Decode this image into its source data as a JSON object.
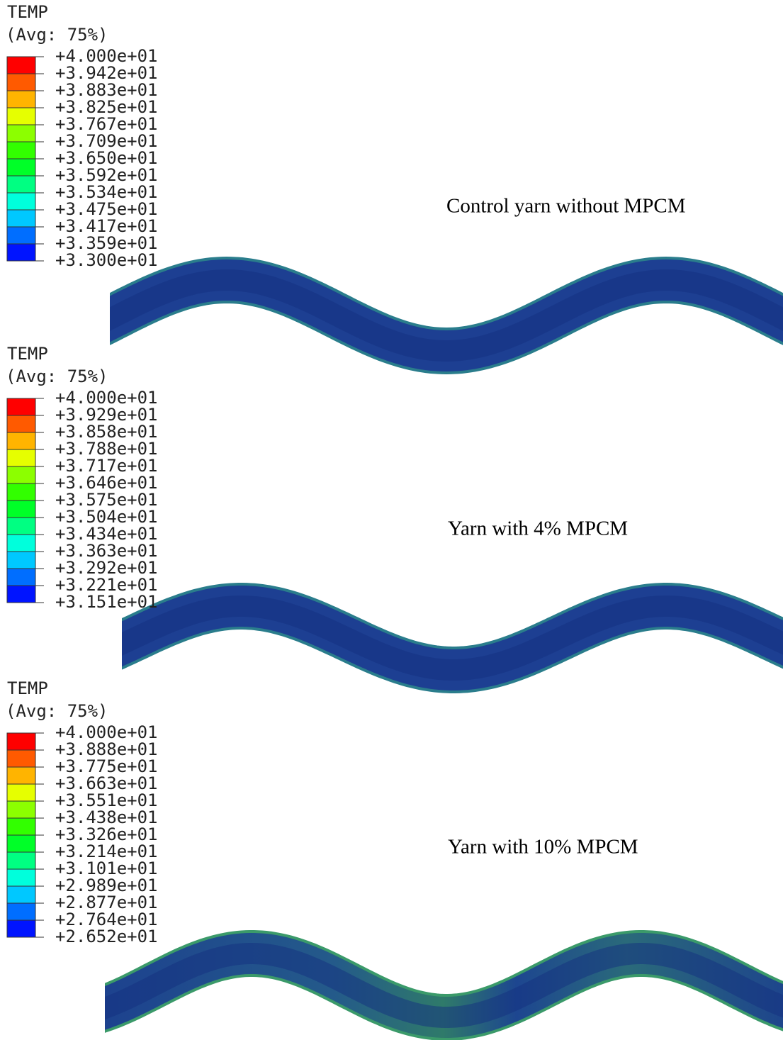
{
  "panels": [
    {
      "legend_title": "TEMP",
      "legend_subtitle": "(Avg: 75%)",
      "legend_labels": [
        "+4.000e+01",
        "+3.942e+01",
        "+3.883e+01",
        "+3.825e+01",
        "+3.767e+01",
        "+3.709e+01",
        "+3.650e+01",
        "+3.592e+01",
        "+3.534e+01",
        "+3.475e+01",
        "+3.417e+01",
        "+3.359e+01",
        "+3.300e+01"
      ],
      "caption": "Control yarn without MPCM"
    },
    {
      "legend_title": "TEMP",
      "legend_subtitle": "(Avg: 75%)",
      "legend_labels": [
        "+4.000e+01",
        "+3.929e+01",
        "+3.858e+01",
        "+3.788e+01",
        "+3.717e+01",
        "+3.646e+01",
        "+3.575e+01",
        "+3.504e+01",
        "+3.434e+01",
        "+3.363e+01",
        "+3.292e+01",
        "+3.221e+01",
        "+3.151e+01"
      ],
      "caption": "Yarn with 4% MPCM"
    },
    {
      "legend_title": "TEMP",
      "legend_subtitle": "(Avg: 75%)",
      "legend_labels": [
        "+4.000e+01",
        "+3.888e+01",
        "+3.775e+01",
        "+3.663e+01",
        "+3.551e+01",
        "+3.438e+01",
        "+3.326e+01",
        "+3.214e+01",
        "+3.101e+01",
        "+2.989e+01",
        "+2.877e+01",
        "+2.764e+01",
        "+2.652e+01"
      ],
      "caption": "Yarn with 10% MPCM"
    }
  ]
}
